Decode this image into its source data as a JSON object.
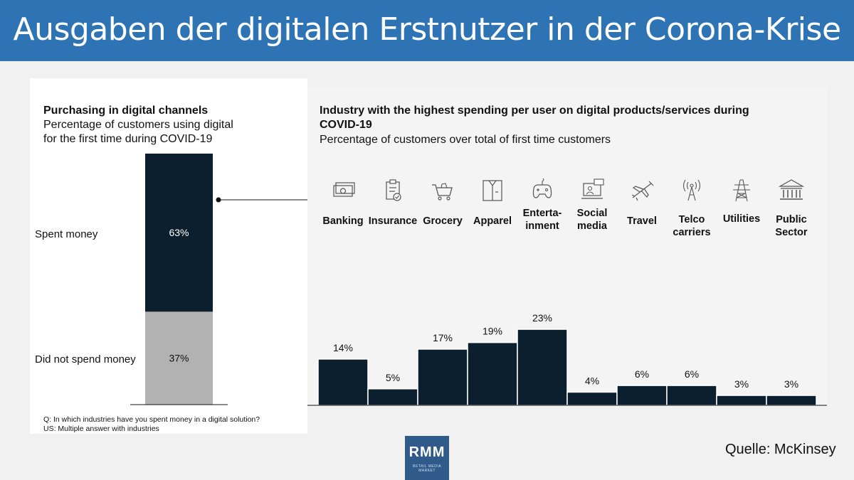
{
  "header": {
    "title": "Ausgaben der digitalen Erstnutzer in der Corona-Krise"
  },
  "source": "Quelle: McKinsey",
  "logo": {
    "text": "RMM",
    "subtext": "RETAIL MEDIA MARKET"
  },
  "left_chart": {
    "title": "Purchasing in digital channels",
    "subtitle_lines": [
      "Percentage of customers using digital",
      "for the first time during COVID-19"
    ],
    "labels": [
      "Spent money",
      "Did not spend money"
    ],
    "value_labels": [
      "63%",
      "37%"
    ],
    "footnotes": [
      "Q: In which industries have you spent money in a digital solution?",
      "US: Multiple answer with industries"
    ]
  },
  "right_chart": {
    "title_lines": [
      "Industry with the highest spending per user on digital products/services during",
      "COVID-19"
    ],
    "subtitle": "Percentage of customers over total of first time customers"
  },
  "colors": {
    "dark": "#0b1f2e",
    "light": "#b2b2b2",
    "header": "#2e74b5"
  },
  "chart_data": [
    {
      "type": "bar",
      "stacked": true,
      "title": "Purchasing in digital channels",
      "categories": [
        "Spent money",
        "Did not spend money"
      ],
      "values": [
        63,
        37
      ],
      "unit": "%"
    },
    {
      "type": "bar",
      "title": "Industry with the highest spending per user on digital products/services during COVID-19",
      "categories": [
        {
          "label": [
            "Banking"
          ],
          "icon": "banknotes-icon"
        },
        {
          "label": [
            "Insurance"
          ],
          "icon": "clipboard-check-icon"
        },
        {
          "label": [
            "Grocery"
          ],
          "icon": "shopping-cart-icon"
        },
        {
          "label": [
            "Apparel"
          ],
          "icon": "shirt-icon"
        },
        {
          "label": [
            "Enterta-",
            "inment"
          ],
          "icon": "gamepad-icon"
        },
        {
          "label": [
            "Social",
            "media"
          ],
          "icon": "computer-user-icon"
        },
        {
          "label": [
            "Travel"
          ],
          "icon": "airplane-icon"
        },
        {
          "label": [
            "Telco",
            "carriers"
          ],
          "icon": "antenna-icon"
        },
        {
          "label": [
            "Utilities"
          ],
          "icon": "power-pylon-icon"
        },
        {
          "label": [
            "Public",
            "Sector"
          ],
          "icon": "government-building-icon"
        }
      ],
      "values": [
        14,
        5,
        17,
        19,
        23,
        4,
        6,
        6,
        3,
        3
      ],
      "value_labels": [
        "14%",
        "5%",
        "17%",
        "19%",
        "23%",
        "4%",
        "6%",
        "6%",
        "3%",
        "3%"
      ],
      "unit": "%"
    }
  ]
}
